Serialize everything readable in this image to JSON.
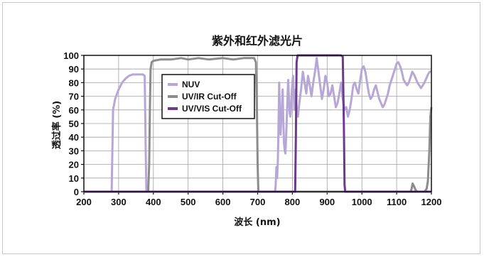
{
  "chart_data": {
    "type": "line",
    "title": "紫外和红外滤光片",
    "xlabel": "波长 (nm)",
    "ylabel": "透过率 (%)",
    "xlim": [
      200,
      1200
    ],
    "ylim": [
      0,
      100
    ],
    "xticks": [
      200,
      300,
      400,
      500,
      600,
      700,
      800,
      900,
      1000,
      1100,
      1200
    ],
    "yticks": [
      0,
      10,
      20,
      30,
      40,
      50,
      60,
      70,
      80,
      90,
      100
    ],
    "grid": true,
    "legend_position": "upper-left-inside",
    "series": [
      {
        "name": "NUV",
        "color": "#b6a7d6",
        "points": [
          [
            200,
            0
          ],
          [
            280,
            0
          ],
          [
            282,
            30
          ],
          [
            284,
            60
          ],
          [
            290,
            68
          ],
          [
            300,
            75
          ],
          [
            310,
            80
          ],
          [
            320,
            83
          ],
          [
            330,
            85
          ],
          [
            340,
            86
          ],
          [
            350,
            86
          ],
          [
            360,
            86
          ],
          [
            370,
            86
          ],
          [
            375,
            85
          ],
          [
            378,
            30
          ],
          [
            380,
            0
          ],
          [
            750,
            0
          ],
          [
            752,
            5
          ],
          [
            754,
            18
          ],
          [
            756,
            10
          ],
          [
            758,
            22
          ],
          [
            760,
            45
          ],
          [
            762,
            80
          ],
          [
            764,
            60
          ],
          [
            766,
            42
          ],
          [
            768,
            55
          ],
          [
            770,
            62
          ],
          [
            772,
            75
          ],
          [
            774,
            50
          ],
          [
            776,
            35
          ],
          [
            778,
            30
          ],
          [
            780,
            28
          ],
          [
            782,
            40
          ],
          [
            784,
            55
          ],
          [
            786,
            70
          ],
          [
            788,
            82
          ],
          [
            790,
            70
          ],
          [
            792,
            58
          ],
          [
            794,
            55
          ],
          [
            796,
            60
          ],
          [
            798,
            72
          ],
          [
            800,
            80
          ],
          [
            802,
            85
          ],
          [
            804,
            70
          ],
          [
            806,
            60
          ],
          [
            808,
            68
          ],
          [
            810,
            75
          ],
          [
            812,
            62
          ],
          [
            814,
            58
          ],
          [
            816,
            55
          ],
          [
            818,
            60
          ],
          [
            820,
            65
          ],
          [
            825,
            75
          ],
          [
            830,
            88
          ],
          [
            835,
            80
          ],
          [
            840,
            72
          ],
          [
            845,
            85
          ],
          [
            850,
            78
          ],
          [
            855,
            70
          ],
          [
            860,
            80
          ],
          [
            865,
            88
          ],
          [
            870,
            98
          ],
          [
            875,
            88
          ],
          [
            880,
            78
          ],
          [
            885,
            68
          ],
          [
            890,
            75
          ],
          [
            895,
            85
          ],
          [
            900,
            80
          ],
          [
            905,
            70
          ],
          [
            910,
            72
          ],
          [
            915,
            78
          ],
          [
            920,
            70
          ],
          [
            925,
            62
          ],
          [
            930,
            65
          ],
          [
            935,
            72
          ],
          [
            940,
            80
          ],
          [
            945,
            68
          ],
          [
            950,
            60
          ],
          [
            955,
            62
          ],
          [
            960,
            55
          ],
          [
            965,
            60
          ],
          [
            970,
            68
          ],
          [
            975,
            78
          ],
          [
            980,
            80
          ],
          [
            985,
            75
          ],
          [
            990,
            72
          ],
          [
            995,
            82
          ],
          [
            1000,
            90
          ],
          [
            1005,
            92
          ],
          [
            1010,
            88
          ],
          [
            1015,
            80
          ],
          [
            1020,
            72
          ],
          [
            1025,
            68
          ],
          [
            1030,
            70
          ],
          [
            1035,
            75
          ],
          [
            1040,
            78
          ],
          [
            1045,
            73
          ],
          [
            1050,
            68
          ],
          [
            1055,
            65
          ],
          [
            1060,
            62
          ],
          [
            1065,
            64
          ],
          [
            1070,
            68
          ],
          [
            1075,
            72
          ],
          [
            1080,
            78
          ],
          [
            1085,
            82
          ],
          [
            1090,
            86
          ],
          [
            1095,
            90
          ],
          [
            1100,
            94
          ],
          [
            1105,
            95
          ],
          [
            1110,
            92
          ],
          [
            1115,
            88
          ],
          [
            1120,
            82
          ],
          [
            1125,
            80
          ],
          [
            1130,
            78
          ],
          [
            1135,
            80
          ],
          [
            1140,
            84
          ],
          [
            1145,
            88
          ],
          [
            1150,
            86
          ],
          [
            1155,
            83
          ],
          [
            1160,
            80
          ],
          [
            1165,
            78
          ],
          [
            1170,
            76
          ],
          [
            1175,
            78
          ],
          [
            1180,
            80
          ],
          [
            1185,
            83
          ],
          [
            1190,
            86
          ],
          [
            1195,
            88
          ],
          [
            1200,
            88
          ]
        ]
      },
      {
        "name": "UV/IR Cut-Off",
        "color": "#8c8c8c",
        "points": [
          [
            200,
            0
          ],
          [
            385,
            0
          ],
          [
            388,
            20
          ],
          [
            390,
            60
          ],
          [
            392,
            90
          ],
          [
            395,
            95
          ],
          [
            400,
            96
          ],
          [
            420,
            97
          ],
          [
            450,
            97
          ],
          [
            480,
            98
          ],
          [
            500,
            97
          ],
          [
            530,
            98
          ],
          [
            560,
            97
          ],
          [
            600,
            98
          ],
          [
            630,
            97
          ],
          [
            660,
            98
          ],
          [
            690,
            98
          ],
          [
            695,
            95
          ],
          [
            698,
            60
          ],
          [
            700,
            20
          ],
          [
            702,
            0
          ],
          [
            1140,
            0
          ],
          [
            1143,
            2
          ],
          [
            1146,
            6
          ],
          [
            1150,
            4
          ],
          [
            1155,
            1
          ],
          [
            1160,
            0
          ],
          [
            1180,
            0
          ],
          [
            1186,
            2
          ],
          [
            1190,
            8
          ],
          [
            1194,
            30
          ],
          [
            1197,
            55
          ],
          [
            1200,
            62
          ]
        ]
      },
      {
        "name": "UV/VIS Cut-Off",
        "color": "#6b3a8e",
        "points": [
          [
            200,
            0
          ],
          [
            808,
            0
          ],
          [
            810,
            40
          ],
          [
            812,
            95
          ],
          [
            815,
            100
          ],
          [
            830,
            100
          ],
          [
            870,
            100
          ],
          [
            900,
            100
          ],
          [
            940,
            100
          ],
          [
            945,
            99
          ],
          [
            948,
            50
          ],
          [
            950,
            5
          ],
          [
            952,
            0
          ],
          [
            1200,
            0
          ]
        ]
      }
    ]
  }
}
